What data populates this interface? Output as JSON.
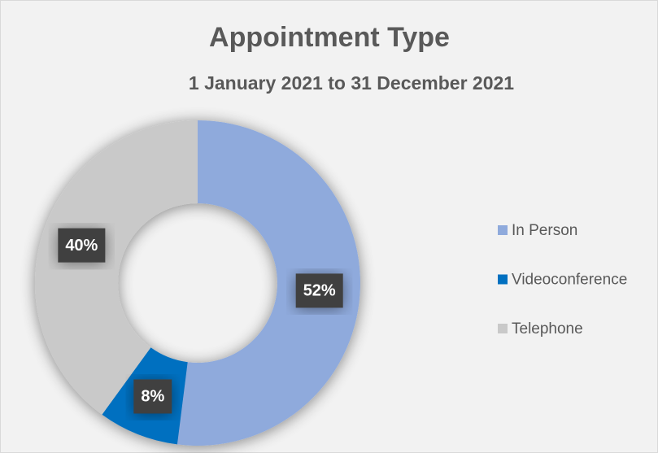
{
  "chart_data": {
    "type": "donut",
    "title": "Appointment Type",
    "subtitle": "1 January 2021 to 31 December 2021",
    "categories": [
      "In Person",
      "Videoconference",
      "Telephone"
    ],
    "values": [
      52,
      8,
      40
    ],
    "value_labels": [
      "52%",
      "8%",
      "40%"
    ],
    "colors": [
      "#8faadc",
      "#0070c0",
      "#c9c9c9"
    ],
    "legend": "right"
  }
}
